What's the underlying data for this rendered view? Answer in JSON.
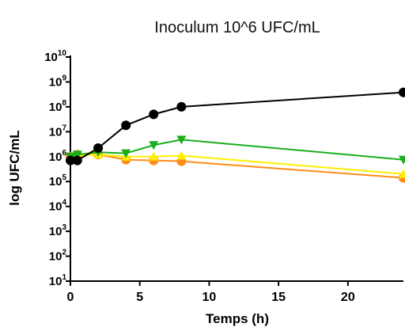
{
  "chart_data": {
    "type": "line",
    "title": "Inoculum 10^6 UFC/mL",
    "xlabel": "Temps (h)",
    "ylabel": "log UFC/mL",
    "y_scale": "log",
    "xlim": [
      0,
      24
    ],
    "ylim": [
      10,
      10000000000
    ],
    "x_ticks": [
      0,
      5,
      10,
      15,
      20
    ],
    "y_ticks": [
      {
        "base": "10",
        "exp": "1",
        "value": 10
      },
      {
        "base": "10",
        "exp": "2",
        "value": 100
      },
      {
        "base": "10",
        "exp": "3",
        "value": 1000
      },
      {
        "base": "10",
        "exp": "4",
        "value": 10000
      },
      {
        "base": "10",
        "exp": "5",
        "value": 100000
      },
      {
        "base": "10",
        "exp": "6",
        "value": 1000000
      },
      {
        "base": "10",
        "exp": "7",
        "value": 10000000
      },
      {
        "base": "10",
        "exp": "8",
        "value": 100000000
      },
      {
        "base": "10",
        "exp": "9",
        "value": 1000000000
      },
      {
        "base": "10",
        "exp": "10",
        "value": 10000000000
      }
    ],
    "grid": false,
    "series": [
      {
        "color": "#000000",
        "marker": "circle",
        "x": [
          0,
          0.5,
          2,
          4,
          6,
          8,
          24
        ],
        "y": [
          700000,
          700000,
          2200000,
          18000000,
          50000000,
          100000000,
          380000000
        ]
      },
      {
        "color": "#1aae1a",
        "marker": "triangle-down",
        "x": [
          0,
          0.5,
          2,
          4,
          6,
          8,
          24
        ],
        "y": [
          1000000,
          1200000,
          1500000,
          1350000,
          2900000,
          4800000,
          750000
        ]
      },
      {
        "color": "#ffee00",
        "marker": "triangle-up",
        "x": [
          0,
          0.5,
          2,
          4,
          6,
          8,
          24
        ],
        "y": [
          1000000,
          1100000,
          1200000,
          1000000,
          1000000,
          1100000,
          200000
        ]
      },
      {
        "color": "#ff8c1a",
        "marker": "circle",
        "x": [
          0,
          0.5,
          2,
          4,
          6,
          8,
          24
        ],
        "y": [
          1000000,
          1200000,
          1200000,
          750000,
          700000,
          650000,
          140000
        ]
      }
    ]
  }
}
